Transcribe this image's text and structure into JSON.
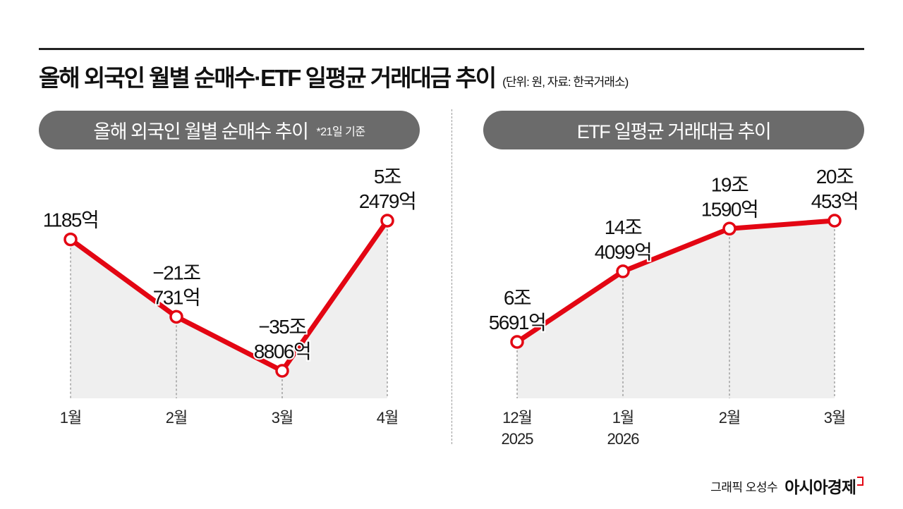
{
  "title": "올해 외국인 월별 순매수·ETF 일평균 거래대금 추이",
  "source_note": "(단위: 원, 자료: 한국거래소)",
  "credit": {
    "author": "그래픽 오성수",
    "brand": "아시아경제"
  },
  "colors": {
    "line": "#e30613",
    "fill": "#efefef",
    "pill": "#6b6b6b"
  },
  "chart_data": [
    {
      "type": "line",
      "title": "올해 외국인 월별 순매수 추이",
      "note": "*21일 기준",
      "categories": [
        [
          "1월"
        ],
        [
          "2월"
        ],
        [
          "3월"
        ],
        [
          "4월"
        ]
      ],
      "values": [
        1185,
        -210731,
        -358806,
        52479
      ],
      "unit": "억 원",
      "data_labels": [
        [
          "1185억"
        ],
        [
          "−21조",
          "731억"
        ],
        [
          "−35조",
          "8806억"
        ],
        [
          "5조",
          "2479억"
        ]
      ],
      "grid": false
    },
    {
      "type": "line",
      "title": "ETF 일평균 거래대금 추이",
      "categories": [
        [
          "12월",
          "2025"
        ],
        [
          "1월",
          "2026"
        ],
        [
          "2월"
        ],
        [
          "3월"
        ]
      ],
      "values": [
        65691,
        144099,
        191590,
        200453
      ],
      "unit": "억 원",
      "data_labels": [
        [
          "6조",
          "5691억"
        ],
        [
          "14조",
          "4099억"
        ],
        [
          "19조",
          "1590억"
        ],
        [
          "20조",
          "453억"
        ]
      ],
      "grid": false
    }
  ]
}
